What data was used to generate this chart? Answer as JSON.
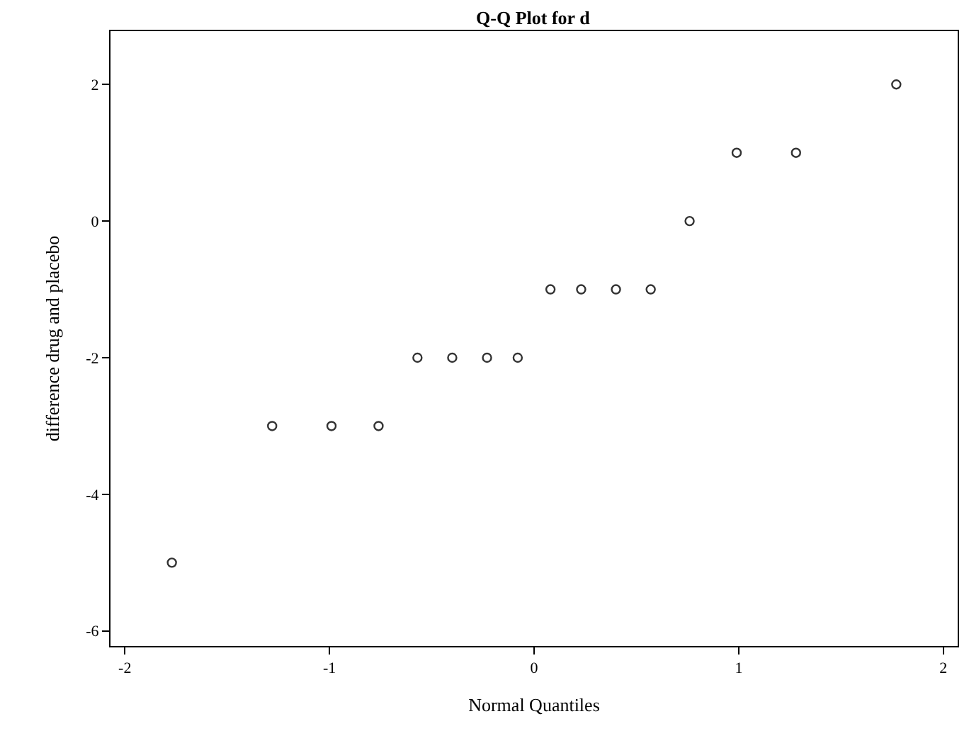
{
  "chart_data": {
    "type": "scatter",
    "title": "Q-Q Plot for d",
    "xlabel": "Normal Quantiles",
    "ylabel": "difference drug and placebo",
    "x": [
      -1.77,
      -1.28,
      -0.99,
      -0.76,
      -0.57,
      -0.4,
      -0.23,
      -0.08,
      0.08,
      0.23,
      0.4,
      0.57,
      0.76,
      0.99,
      1.28,
      1.77
    ],
    "values": [
      -5,
      -3,
      -3,
      -3,
      -2,
      -2,
      -2,
      -2,
      -1,
      -1,
      -1,
      -1,
      0,
      1,
      1,
      2
    ],
    "color": "#333333",
    "marker": "circle",
    "xlim": [
      -2.07,
      2.07
    ],
    "xticks": [
      -2,
      -1,
      0,
      1,
      2
    ],
    "ylim": [
      -6.22,
      2.78
    ],
    "yticks": [
      -6,
      -4,
      -2,
      0,
      2
    ],
    "legend": false
  }
}
